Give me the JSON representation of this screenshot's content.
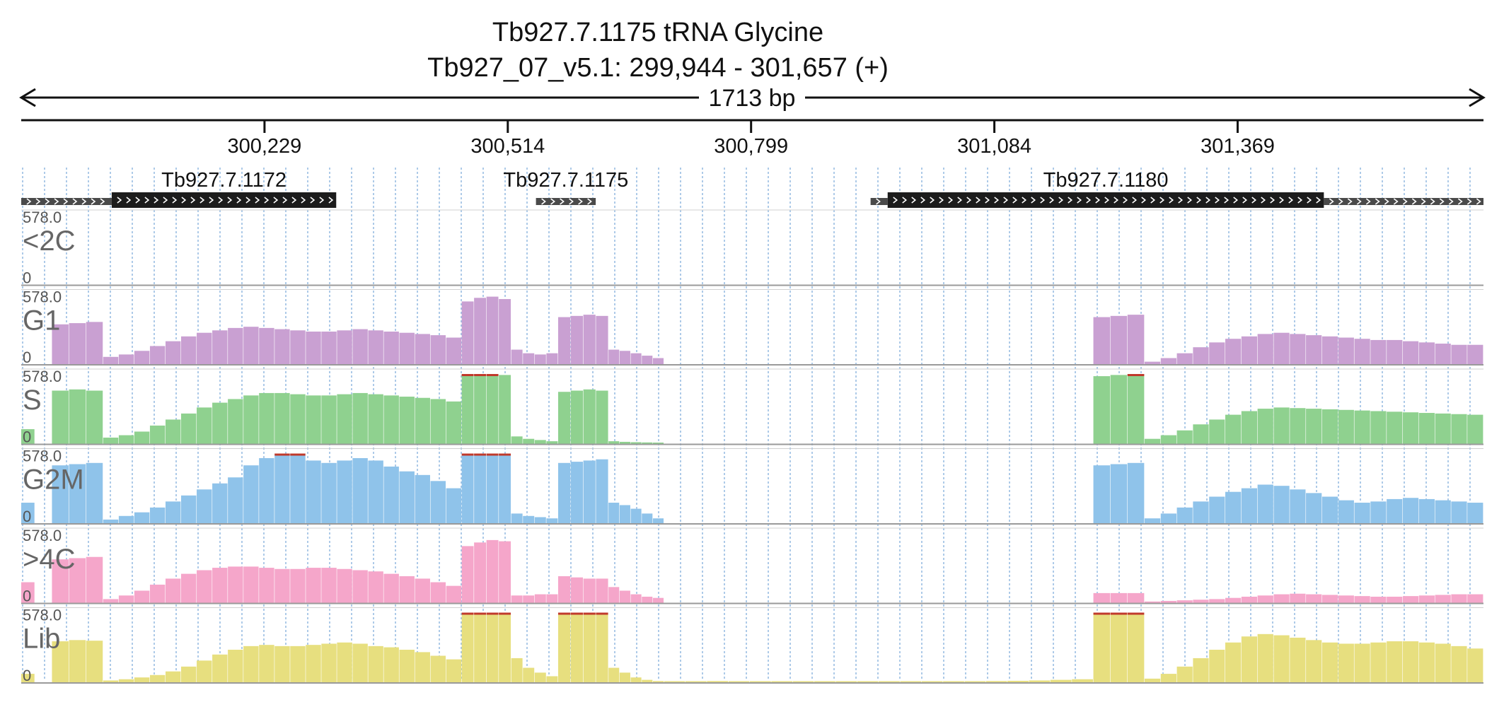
{
  "header": {
    "title_line1": "Tb927.7.1175  tRNA Glycine",
    "title_line2": "Tb927_07_v5.1: 299,944 - 301,657 (+)",
    "span_label": "1713 bp"
  },
  "colors": {
    "G1": "#c9a0d2",
    "S": "#8fd18f",
    "G2M": "#8fc3ea",
    "4C": "#f5a6ca",
    "Lib": "#e7df7f",
    "clip": "#c0392b",
    "gene": "#1c1c1c",
    "utr": "#4a4a4a",
    "grid": "#8ab4de"
  },
  "chart_data": {
    "type": "bar",
    "region": {
      "chrom": "Tb927_07_v5.1",
      "start": 299944,
      "end": 301657,
      "strand": "+"
    },
    "x_ticks": [
      {
        "value": 300229,
        "label": "300,229"
      },
      {
        "value": 300514,
        "label": "300,514"
      },
      {
        "value": 300799,
        "label": "300,799"
      },
      {
        "value": 301084,
        "label": "301,084"
      },
      {
        "value": 301369,
        "label": "301,369"
      }
    ],
    "genes": [
      {
        "name": "Tb927.7.1172",
        "show_label": true,
        "utr5": [
          299944,
          300050
        ],
        "cds": [
          300050,
          300313
        ],
        "utr3": null
      },
      {
        "name": "Tb927.7.1175",
        "show_label": true,
        "utr5": null,
        "cds": null,
        "utr3": null,
        "feature": [
          300547,
          300617
        ]
      },
      {
        "name": "Tb927.7.1180",
        "show_label": true,
        "utr5": [
          300939,
          300959
        ],
        "cds": [
          300959,
          301470
        ],
        "utr3": [
          301470,
          301657
        ]
      }
    ],
    "scale": {
      "max_label": "578.0",
      "min_label": "0",
      "ymax": 578
    },
    "tracks": [
      {
        "name": "<2C",
        "color_key": "G1",
        "segments": []
      },
      {
        "name": "G1",
        "color_key": "G1",
        "segments": [
          {
            "start": 299980,
            "end": 300040,
            "values": [
              330,
              340,
              350
            ]
          },
          {
            "start": 300040,
            "end": 300460,
            "values": [
              60,
              80,
              110,
              150,
              190,
              230,
              260,
              280,
              300,
              310,
              300,
              290,
              280,
              270,
              270,
              280,
              290,
              280,
              270,
              260,
              250,
              240,
              220
            ]
          },
          {
            "start": 300460,
            "end": 300518,
            "values": [
              520,
              550,
              560,
              540
            ]
          },
          {
            "start": 300518,
            "end": 300573,
            "values": [
              120,
              90,
              80,
              90
            ]
          },
          {
            "start": 300573,
            "end": 300632,
            "values": [
              390,
              400,
              410,
              400
            ]
          },
          {
            "start": 300632,
            "end": 300697,
            "values": [
              120,
              110,
              90,
              70,
              50
            ]
          },
          {
            "start": 301200,
            "end": 301260,
            "values": [
              390,
              400,
              410
            ]
          },
          {
            "start": 301260,
            "end": 301657,
            "values": [
              20,
              50,
              90,
              140,
              180,
              210,
              230,
              250,
              260,
              250,
              240,
              230,
              220,
              210,
              200,
              200,
              190,
              180,
              170,
              160,
              160
            ]
          }
        ]
      },
      {
        "name": "S",
        "color_key": "S",
        "segments": [
          {
            "start": 299944,
            "end": 299960,
            "values": [
              120
            ]
          },
          {
            "start": 299980,
            "end": 300040,
            "values": [
              440,
              450,
              440
            ]
          },
          {
            "start": 300040,
            "end": 300460,
            "values": [
              50,
              70,
              100,
              150,
              200,
              250,
              300,
              340,
              370,
              400,
              420,
              420,
              410,
              400,
              400,
              410,
              420,
              410,
              400,
              390,
              380,
              370,
              350
            ]
          },
          {
            "start": 300460,
            "end": 300518,
            "values": [
              578,
              578,
              578,
              570
            ]
          },
          {
            "start": 300518,
            "end": 300573,
            "values": [
              60,
              40,
              30,
              20
            ]
          },
          {
            "start": 300573,
            "end": 300632,
            "values": [
              430,
              440,
              450,
              440
            ]
          },
          {
            "start": 300632,
            "end": 300697,
            "values": [
              20,
              15,
              12,
              10,
              8
            ]
          },
          {
            "start": 301200,
            "end": 301260,
            "values": [
              560,
              570,
              578
            ]
          },
          {
            "start": 301260,
            "end": 301657,
            "values": [
              40,
              70,
              110,
              160,
              200,
              240,
              270,
              290,
              300,
              295,
              290,
              285,
              280,
              275,
              270,
              265,
              260,
              255,
              250,
              245,
              240
            ]
          }
        ]
      },
      {
        "name": "G2M",
        "color_key": "G2M",
        "segments": [
          {
            "start": 299944,
            "end": 299960,
            "values": [
              170
            ]
          },
          {
            "start": 299980,
            "end": 300040,
            "values": [
              480,
              490,
              500
            ]
          },
          {
            "start": 300040,
            "end": 300460,
            "values": [
              30,
              60,
              90,
              130,
              180,
              230,
              280,
              330,
              380,
              480,
              540,
              578,
              578,
              520,
              500,
              520,
              540,
              520,
              470,
              430,
              400,
              350,
              290
            ]
          },
          {
            "start": 300460,
            "end": 300518,
            "values": [
              578,
              578,
              578,
              578
            ]
          },
          {
            "start": 300518,
            "end": 300573,
            "values": [
              80,
              60,
              50,
              40
            ]
          },
          {
            "start": 300573,
            "end": 300632,
            "values": [
              500,
              510,
              520,
              530
            ]
          },
          {
            "start": 300632,
            "end": 300697,
            "values": [
              170,
              150,
              120,
              80,
              40
            ]
          },
          {
            "start": 301200,
            "end": 301260,
            "values": [
              480,
              490,
              500
            ]
          },
          {
            "start": 301260,
            "end": 301657,
            "values": [
              40,
              80,
              130,
              180,
              220,
              260,
              290,
              320,
              310,
              280,
              250,
              220,
              190,
              170,
              180,
              200,
              210,
              200,
              190,
              180,
              170
            ]
          }
        ]
      },
      {
        "name": ">4C",
        "color_key": "4C",
        "segments": [
          {
            "start": 299944,
            "end": 299960,
            "values": [
              170
            ]
          },
          {
            "start": 299980,
            "end": 300040,
            "values": [
              360,
              370,
              380
            ]
          },
          {
            "start": 300040,
            "end": 300460,
            "values": [
              30,
              60,
              100,
              150,
              200,
              240,
              270,
              290,
              300,
              300,
              290,
              280,
              280,
              290,
              290,
              280,
              270,
              260,
              240,
              220,
              200,
              170,
              140
            ]
          },
          {
            "start": 300460,
            "end": 300518,
            "values": [
              470,
              500,
              520,
              510
            ]
          },
          {
            "start": 300518,
            "end": 300573,
            "values": [
              60,
              60,
              70,
              70
            ]
          },
          {
            "start": 300573,
            "end": 300632,
            "values": [
              220,
              210,
              200,
              200
            ]
          },
          {
            "start": 300632,
            "end": 300697,
            "values": [
              130,
              100,
              70,
              50,
              40
            ]
          },
          {
            "start": 301200,
            "end": 301260,
            "values": [
              80,
              80,
              80
            ]
          },
          {
            "start": 301260,
            "end": 301657,
            "values": [
              10,
              15,
              20,
              25,
              30,
              40,
              50,
              60,
              70,
              75,
              70,
              65,
              60,
              55,
              50,
              50,
              55,
              60,
              65,
              70,
              70
            ]
          }
        ]
      },
      {
        "name": "Lib",
        "color_key": "Lib",
        "segments": [
          {
            "start": 299944,
            "end": 299960,
            "values": [
              70
            ]
          },
          {
            "start": 299980,
            "end": 300040,
            "values": [
              340,
              350,
              345
            ]
          },
          {
            "start": 300040,
            "end": 300460,
            "values": [
              15,
              25,
              40,
              60,
              90,
              130,
              180,
              230,
              270,
              300,
              310,
              300,
              300,
              310,
              320,
              330,
              320,
              300,
              290,
              270,
              250,
              220,
              190
            ]
          },
          {
            "start": 300460,
            "end": 300518,
            "values": [
              620,
              640,
              640,
              600
            ]
          },
          {
            "start": 300518,
            "end": 300573,
            "values": [
              200,
              120,
              80,
              50
            ]
          },
          {
            "start": 300573,
            "end": 300632,
            "values": [
              578,
              578,
              578,
              578
            ]
          },
          {
            "start": 300632,
            "end": 300697,
            "values": [
              120,
              80,
              40,
              20,
              10
            ]
          },
          {
            "start": 300697,
            "end": 301200,
            "values": [
              5,
              8,
              10,
              6,
              4,
              5,
              6,
              4,
              5,
              6,
              5,
              4,
              5,
              6,
              8,
              10,
              12,
              15,
              20,
              25
            ]
          },
          {
            "start": 301200,
            "end": 301260,
            "values": [
              578,
              578,
              578
            ]
          },
          {
            "start": 301260,
            "end": 301657,
            "values": [
              30,
              70,
              130,
              200,
              270,
              330,
              380,
              400,
              390,
              370,
              350,
              330,
              320,
              320,
              330,
              340,
              340,
              330,
              320,
              300,
              280
            ]
          }
        ]
      }
    ]
  }
}
